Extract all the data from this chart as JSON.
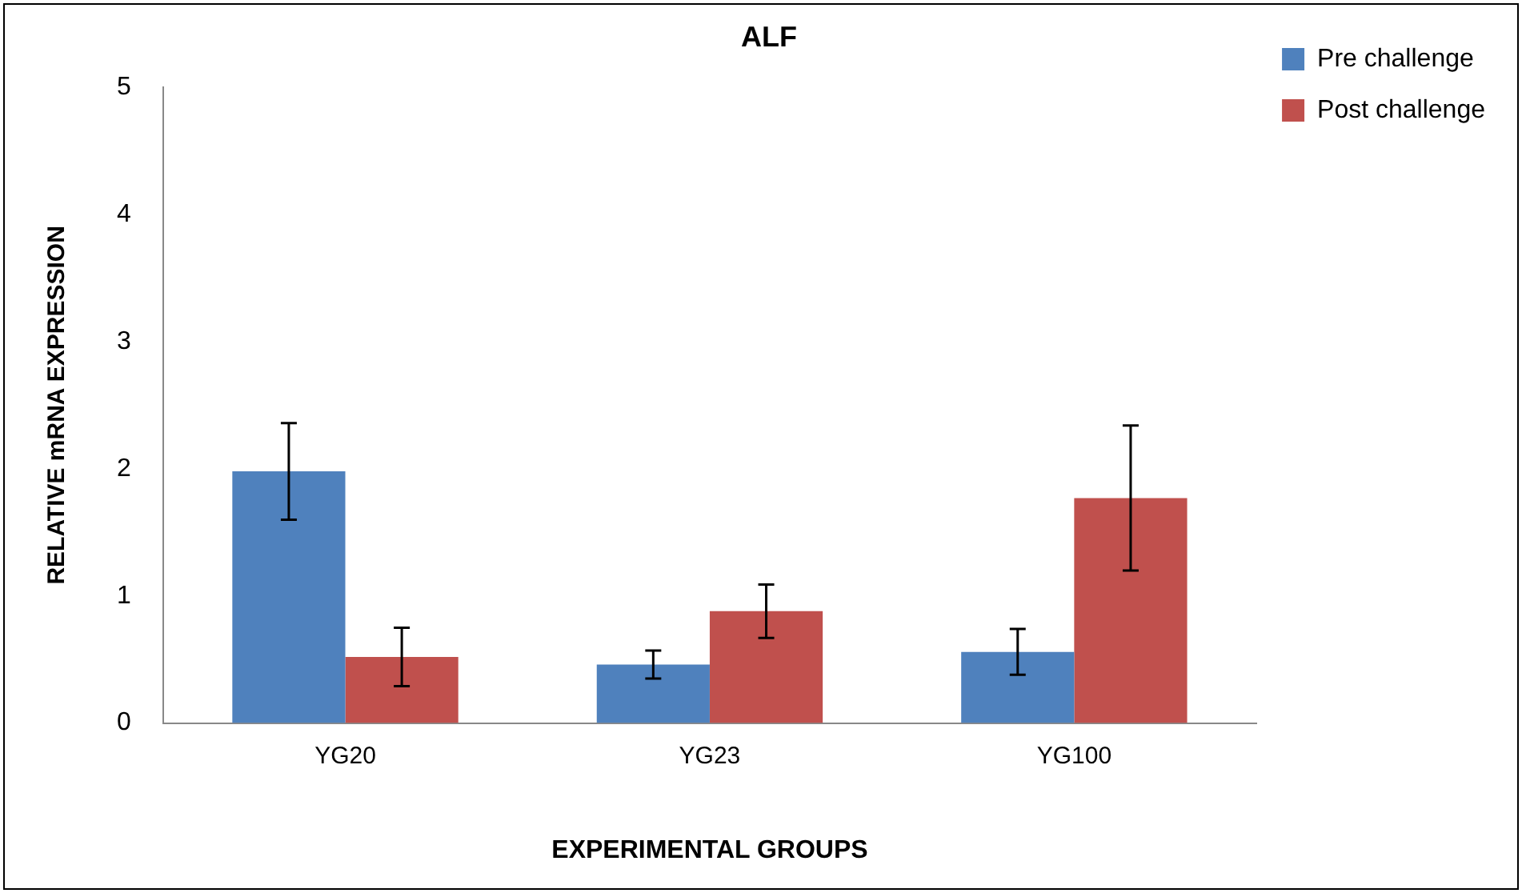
{
  "chart_data": {
    "type": "bar",
    "title": "ALF",
    "xlabel": "EXPERIMENTAL GROUPS",
    "ylabel": "RELATIVE mRNA EXPRESSION",
    "categories": [
      "YG20",
      "YG23",
      "YG100"
    ],
    "series": [
      {
        "name": "Pre challenge",
        "color": "#4f81bd",
        "values": [
          1.98,
          0.46,
          0.56
        ],
        "errors": [
          0.38,
          0.11,
          0.18
        ]
      },
      {
        "name": "Post challenge",
        "color": "#c0504d",
        "values": [
          0.52,
          0.88,
          1.77
        ],
        "errors": [
          0.23,
          0.21,
          0.57
        ]
      }
    ],
    "ylim": [
      0,
      5
    ],
    "yticks": [
      0,
      1,
      2,
      3,
      4,
      5
    ],
    "grid": false,
    "legend": "top right"
  }
}
